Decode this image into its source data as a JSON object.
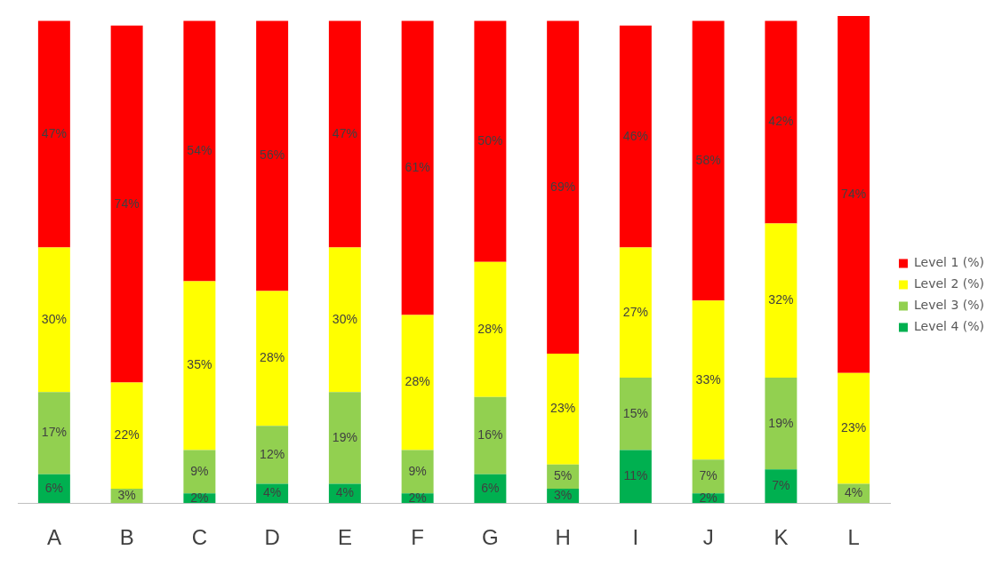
{
  "chart_data": {
    "type": "bar",
    "stacked": true,
    "legend": "right",
    "grid": false,
    "tick_labels": "x",
    "categories": [
      "A",
      "B",
      "C",
      "D",
      "E",
      "F",
      "G",
      "H",
      "I",
      "J",
      "K",
      "L"
    ],
    "ylim": [
      0,
      101
    ],
    "series": [
      {
        "name": "Level 4 (%)",
        "color": "#00b050",
        "values": [
          6,
          null,
          2,
          4,
          4,
          2,
          6,
          3,
          11,
          2,
          7,
          null
        ],
        "value_labels": [
          "6%",
          null,
          "2%",
          "4%",
          "4%",
          "2%",
          "6%",
          "3%",
          "11%",
          "2%",
          "7%",
          null
        ]
      },
      {
        "name": "Level 3 (%)",
        "color": "#92d050",
        "values": [
          17,
          3,
          9,
          12,
          19,
          9,
          16,
          5,
          15,
          7,
          19,
          4
        ],
        "value_labels": [
          "17%",
          "3%",
          "9%",
          "12%",
          "19%",
          "9%",
          "16%",
          "5%",
          "15%",
          "7%",
          "19%",
          "4%"
        ]
      },
      {
        "name": "Level 2 (%)",
        "color": "#ffff00",
        "values": [
          30,
          22,
          35,
          28,
          30,
          28,
          28,
          23,
          27,
          33,
          32,
          23
        ],
        "value_labels": [
          "30%",
          "22%",
          "35%",
          "28%",
          "30%",
          "28%",
          "28%",
          "23%",
          "27%",
          "33%",
          "32%",
          "23%"
        ]
      },
      {
        "name": "Level 1 (%)",
        "color": "#ff0000",
        "values": [
          47,
          74,
          54,
          56,
          47,
          61,
          50,
          69,
          46,
          58,
          42,
          74
        ],
        "value_labels": [
          "47%",
          "74%",
          "54%",
          "56%",
          "47%",
          "61%",
          "50%",
          "69%",
          "46%",
          "58%",
          "42%",
          "74%"
        ]
      }
    ]
  }
}
